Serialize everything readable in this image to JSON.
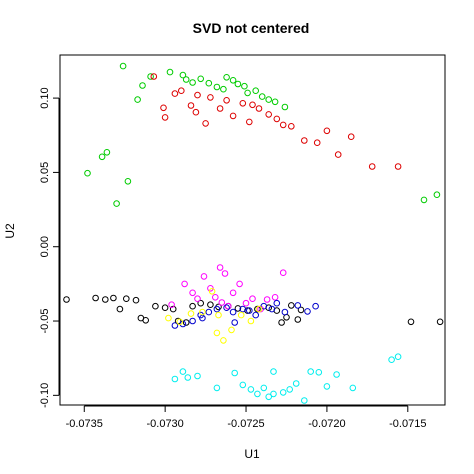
{
  "chart_data": {
    "type": "scatter",
    "title": "SVD not centered",
    "xlabel": "U1",
    "ylabel": "U2",
    "xlim": [
      -0.07365,
      -0.07127
    ],
    "ylim": [
      -0.1065,
      0.129
    ],
    "x_ticks": [
      -0.0735,
      -0.073,
      -0.0725,
      -0.072,
      -0.0715
    ],
    "x_tick_labels": [
      "-0.0735",
      "-0.0730",
      "-0.0725",
      "-0.0720",
      "-0.0715"
    ],
    "y_ticks": [
      -0.1,
      -0.05,
      0.0,
      0.05,
      0.1
    ],
    "y_tick_labels": [
      "-0.10",
      "-0.05",
      "0.00",
      "0.05",
      "0.10"
    ],
    "grid": false,
    "legend": "none",
    "marker": "open-circle",
    "series": [
      {
        "color": "#00cc00",
        "points": [
          [
            -0.07326,
            0.1215
          ],
          [
            -0.07314,
            0.1085
          ],
          [
            -0.07309,
            0.1145
          ],
          [
            -0.07297,
            0.1175
          ],
          [
            -0.07289,
            0.1155
          ],
          [
            -0.07287,
            0.1125
          ],
          [
            -0.07283,
            0.1105
          ],
          [
            -0.07278,
            0.113
          ],
          [
            -0.07273,
            0.11
          ],
          [
            -0.07268,
            0.1075
          ],
          [
            -0.07264,
            0.106
          ],
          [
            -0.07262,
            0.114
          ],
          [
            -0.07258,
            0.112
          ],
          [
            -0.07255,
            0.1095
          ],
          [
            -0.07251,
            0.108
          ],
          [
            -0.07249,
            0.1035
          ],
          [
            -0.07244,
            0.105
          ],
          [
            -0.0724,
            0.101
          ],
          [
            -0.07236,
            0.099
          ],
          [
            -0.07232,
            0.0975
          ],
          [
            -0.07226,
            0.094
          ],
          [
            -0.07317,
            0.099
          ],
          [
            -0.07336,
            0.0635
          ],
          [
            -0.07339,
            0.0605
          ],
          [
            -0.07348,
            0.0495
          ],
          [
            -0.07323,
            0.044
          ],
          [
            -0.0733,
            0.029
          ],
          [
            -0.0714,
            0.0315
          ],
          [
            -0.07132,
            0.035
          ]
        ]
      },
      {
        "color": "#dd0000",
        "points": [
          [
            -0.07307,
            0.1145
          ],
          [
            -0.07294,
            0.103
          ],
          [
            -0.0729,
            0.105
          ],
          [
            -0.0728,
            0.102
          ],
          [
            -0.07272,
            0.1005
          ],
          [
            -0.07262,
            0.0985
          ],
          [
            -0.07252,
            0.0965
          ],
          [
            -0.07246,
            0.0955
          ],
          [
            -0.07242,
            0.093
          ],
          [
            -0.07236,
            0.089
          ],
          [
            -0.07231,
            0.086
          ],
          [
            -0.07227,
            0.082
          ],
          [
            -0.07222,
            0.081
          ],
          [
            -0.07266,
            0.093
          ],
          [
            -0.07258,
            0.088
          ],
          [
            -0.07248,
            0.084
          ],
          [
            -0.07275,
            0.083
          ],
          [
            -0.07281,
            0.0905
          ],
          [
            -0.07284,
            0.095
          ],
          [
            -0.073,
            0.087
          ],
          [
            -0.07214,
            0.0715
          ],
          [
            -0.07206,
            0.07
          ],
          [
            -0.072,
            0.078
          ],
          [
            -0.07193,
            0.062
          ],
          [
            -0.07185,
            0.074
          ],
          [
            -0.07172,
            0.054
          ],
          [
            -0.07156,
            0.054
          ],
          [
            -0.07301,
            0.0935
          ]
        ]
      },
      {
        "color": "#000000",
        "points": [
          [
            -0.07361,
            -0.0355
          ],
          [
            -0.07343,
            -0.0345
          ],
          [
            -0.07337,
            -0.0355
          ],
          [
            -0.07332,
            -0.0345
          ],
          [
            -0.07328,
            -0.042
          ],
          [
            -0.07324,
            -0.035
          ],
          [
            -0.07318,
            -0.036
          ],
          [
            -0.07315,
            -0.048
          ],
          [
            -0.07312,
            -0.0495
          ],
          [
            -0.07306,
            -0.04
          ],
          [
            -0.073,
            -0.041
          ],
          [
            -0.07295,
            -0.042
          ],
          [
            -0.07292,
            -0.05
          ],
          [
            -0.07287,
            -0.051
          ],
          [
            -0.07283,
            -0.04
          ],
          [
            -0.07278,
            -0.038
          ],
          [
            -0.07272,
            -0.039
          ],
          [
            -0.07267,
            -0.0405
          ],
          [
            -0.07261,
            -0.04
          ],
          [
            -0.07255,
            -0.0415
          ],
          [
            -0.07249,
            -0.043
          ],
          [
            -0.07243,
            -0.042
          ],
          [
            -0.07236,
            -0.041
          ],
          [
            -0.07231,
            -0.043
          ],
          [
            -0.07225,
            -0.0475
          ],
          [
            -0.07222,
            -0.0395
          ],
          [
            -0.07216,
            -0.0425
          ],
          [
            -0.07228,
            -0.051
          ],
          [
            -0.07218,
            -0.049
          ],
          [
            -0.07148,
            -0.0505
          ],
          [
            -0.0713,
            -0.0505
          ]
        ]
      },
      {
        "color": "#ff00ff",
        "points": [
          [
            -0.07288,
            -0.025
          ],
          [
            -0.07283,
            -0.031
          ],
          [
            -0.0728,
            -0.035
          ],
          [
            -0.07276,
            -0.02
          ],
          [
            -0.07272,
            -0.028
          ],
          [
            -0.07269,
            -0.034
          ],
          [
            -0.07265,
            -0.0375
          ],
          [
            -0.07261,
            -0.04
          ],
          [
            -0.07258,
            -0.031
          ],
          [
            -0.07254,
            -0.025
          ],
          [
            -0.0725,
            -0.038
          ],
          [
            -0.07246,
            -0.035
          ],
          [
            -0.07241,
            -0.042
          ],
          [
            -0.07237,
            -0.0355
          ],
          [
            -0.07232,
            -0.034
          ],
          [
            -0.07266,
            -0.014
          ],
          [
            -0.07263,
            -0.018
          ],
          [
            -0.07227,
            -0.0175
          ],
          [
            -0.07296,
            -0.039
          ]
        ]
      },
      {
        "color": "#0000cc",
        "points": [
          [
            -0.07294,
            -0.053
          ],
          [
            -0.07289,
            -0.052
          ],
          [
            -0.07283,
            -0.05
          ],
          [
            -0.07278,
            -0.046
          ],
          [
            -0.07273,
            -0.044
          ],
          [
            -0.07268,
            -0.042
          ],
          [
            -0.07262,
            -0.041
          ],
          [
            -0.07258,
            -0.044
          ],
          [
            -0.07252,
            -0.042
          ],
          [
            -0.07248,
            -0.043
          ],
          [
            -0.07244,
            -0.046
          ],
          [
            -0.07239,
            -0.04
          ],
          [
            -0.07234,
            -0.042
          ],
          [
            -0.07231,
            -0.038
          ],
          [
            -0.07226,
            -0.044
          ],
          [
            -0.07218,
            -0.0395
          ],
          [
            -0.07212,
            -0.0435
          ],
          [
            -0.07207,
            -0.04
          ],
          [
            -0.07277,
            -0.048
          ],
          [
            -0.07257,
            -0.051
          ]
        ]
      },
      {
        "color": "#ffff00",
        "points": [
          [
            -0.07298,
            -0.048
          ],
          [
            -0.07291,
            -0.0505
          ],
          [
            -0.07284,
            -0.045
          ],
          [
            -0.07277,
            -0.044
          ],
          [
            -0.07271,
            -0.03
          ],
          [
            -0.07268,
            -0.058
          ],
          [
            -0.07264,
            -0.063
          ],
          [
            -0.07259,
            -0.056
          ],
          [
            -0.07253,
            -0.046
          ],
          [
            -0.07247,
            -0.05
          ],
          [
            -0.07242,
            -0.042
          ],
          [
            -0.07267,
            -0.046
          ]
        ]
      },
      {
        "color": "#00eeee",
        "points": [
          [
            -0.07294,
            -0.089
          ],
          [
            -0.07289,
            -0.084
          ],
          [
            -0.07286,
            -0.088
          ],
          [
            -0.0728,
            -0.087
          ],
          [
            -0.07268,
            -0.095
          ],
          [
            -0.07257,
            -0.085
          ],
          [
            -0.07252,
            -0.093
          ],
          [
            -0.07247,
            -0.096
          ],
          [
            -0.07243,
            -0.099
          ],
          [
            -0.07239,
            -0.095
          ],
          [
            -0.07236,
            -0.101
          ],
          [
            -0.07233,
            -0.099
          ],
          [
            -0.07227,
            -0.098
          ],
          [
            -0.07223,
            -0.096
          ],
          [
            -0.07219,
            -0.092
          ],
          [
            -0.07214,
            -0.1035
          ],
          [
            -0.0721,
            -0.084
          ],
          [
            -0.07205,
            -0.0845
          ],
          [
            -0.072,
            -0.094
          ],
          [
            -0.07194,
            -0.086
          ],
          [
            -0.07184,
            -0.095
          ],
          [
            -0.0716,
            -0.076
          ],
          [
            -0.07156,
            -0.074
          ],
          [
            -0.07233,
            -0.084
          ]
        ]
      }
    ]
  }
}
